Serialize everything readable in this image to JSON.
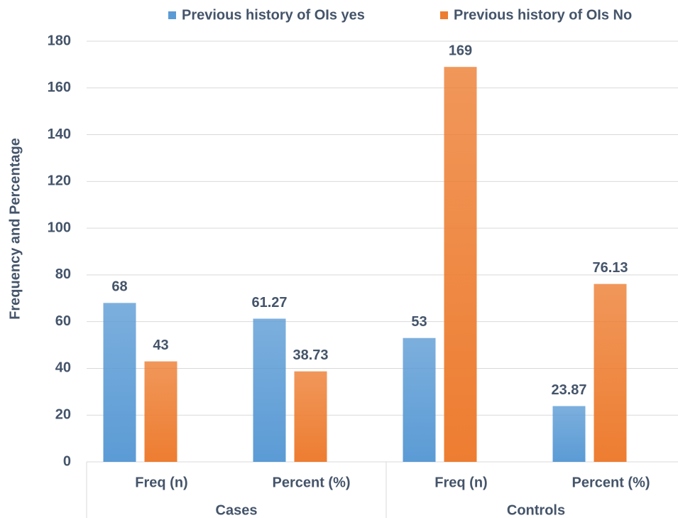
{
  "chart_data": {
    "type": "bar",
    "y_label": "Frequency and Percentage",
    "category_groups": [
      {
        "name": "Cases",
        "categories": [
          "Freq (n)",
          "Percent (%)"
        ]
      },
      {
        "name": "Controls",
        "categories": [
          "Freq (n)",
          "Percent (%)"
        ]
      }
    ],
    "series": [
      {
        "name": "Previous history of OIs yes",
        "color": "#5b9bd5",
        "values": [
          68,
          61.27,
          53,
          23.87
        ]
      },
      {
        "name": "Previous history of OIs No",
        "color": "#ed7d31",
        "values": [
          43,
          38.73,
          169,
          76.13
        ]
      }
    ],
    "ylim": [
      0,
      180
    ],
    "yticks": [
      0,
      20,
      40,
      60,
      80,
      100,
      120,
      140,
      160,
      180
    ],
    "grid": true,
    "legend": "top"
  }
}
